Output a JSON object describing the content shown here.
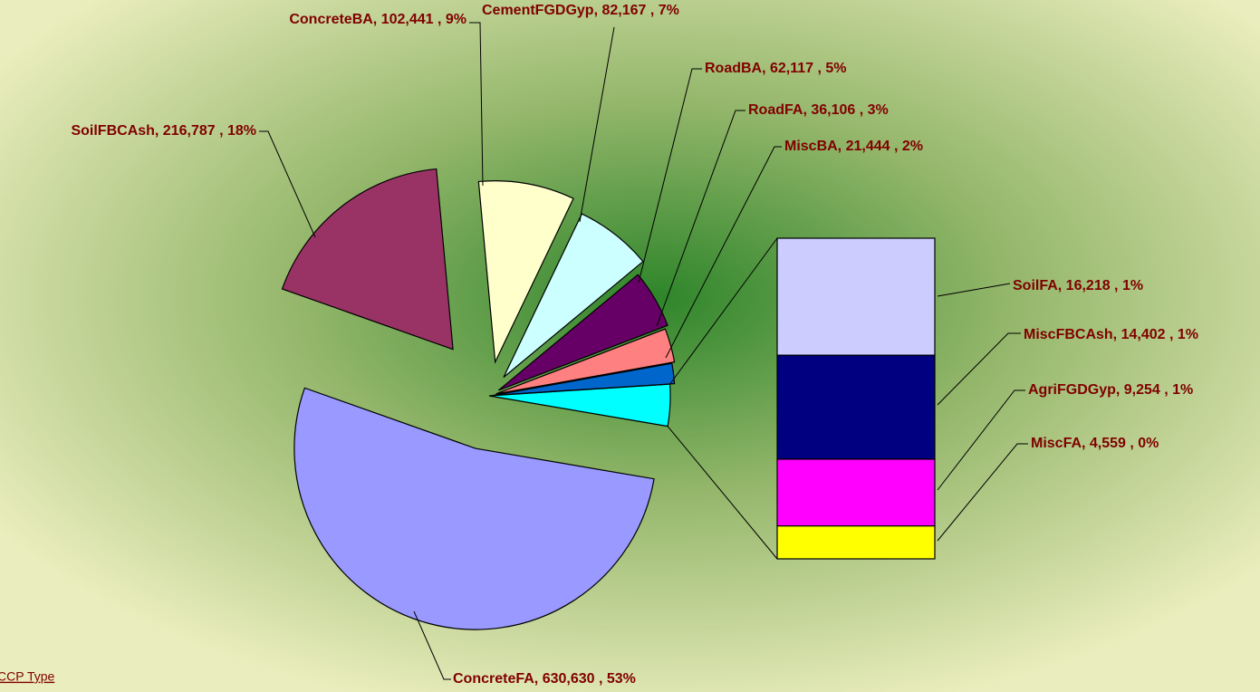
{
  "chart_data": {
    "type": "pie",
    "pie": {
      "categories": [
        "ConcreteFA",
        "SoilFBCAsh",
        "ConcreteBA",
        "CementFGDGyp",
        "RoadBA",
        "RoadFA",
        "MiscBA"
      ],
      "values": [
        630630,
        216787,
        102441,
        82167,
        62117,
        36106,
        21444
      ],
      "value_labels": [
        "ConcreteFA, 630,630 , 53%",
        "SoilFBCAsh, 216,787 , 18%",
        "ConcreteBA, 102,441 , 9%",
        "CementFGDGyp, 82,167 , 7%",
        "RoadBA, 62,117 , 5%",
        "RoadFA, 36,106 , 3%",
        "MiscBA, 21,444 , 2%"
      ],
      "colors": [
        "#9999ff",
        "#993366",
        "#ffffcc",
        "#ccffff",
        "#660066",
        "#ff8080",
        "#0066cc"
      ]
    },
    "other_color": "#00ffff",
    "bar": {
      "categories": [
        "SoilFA",
        "MiscFBCAsh",
        "AgriFGDGyp",
        "MiscFA"
      ],
      "values": [
        16218,
        14402,
        9254,
        4559
      ],
      "value_labels": [
        "SoilFA, 16,218 , 1%",
        "MiscFBCAsh, 14,402 , 1%",
        "AgriFGDGyp, 9,254 , 1%",
        "MiscFA, 4,559 , 0%"
      ],
      "colors": [
        "#ccccff",
        "#000080",
        "#ff00ff",
        "#ffff00"
      ]
    },
    "field_button": "CCP Type"
  }
}
